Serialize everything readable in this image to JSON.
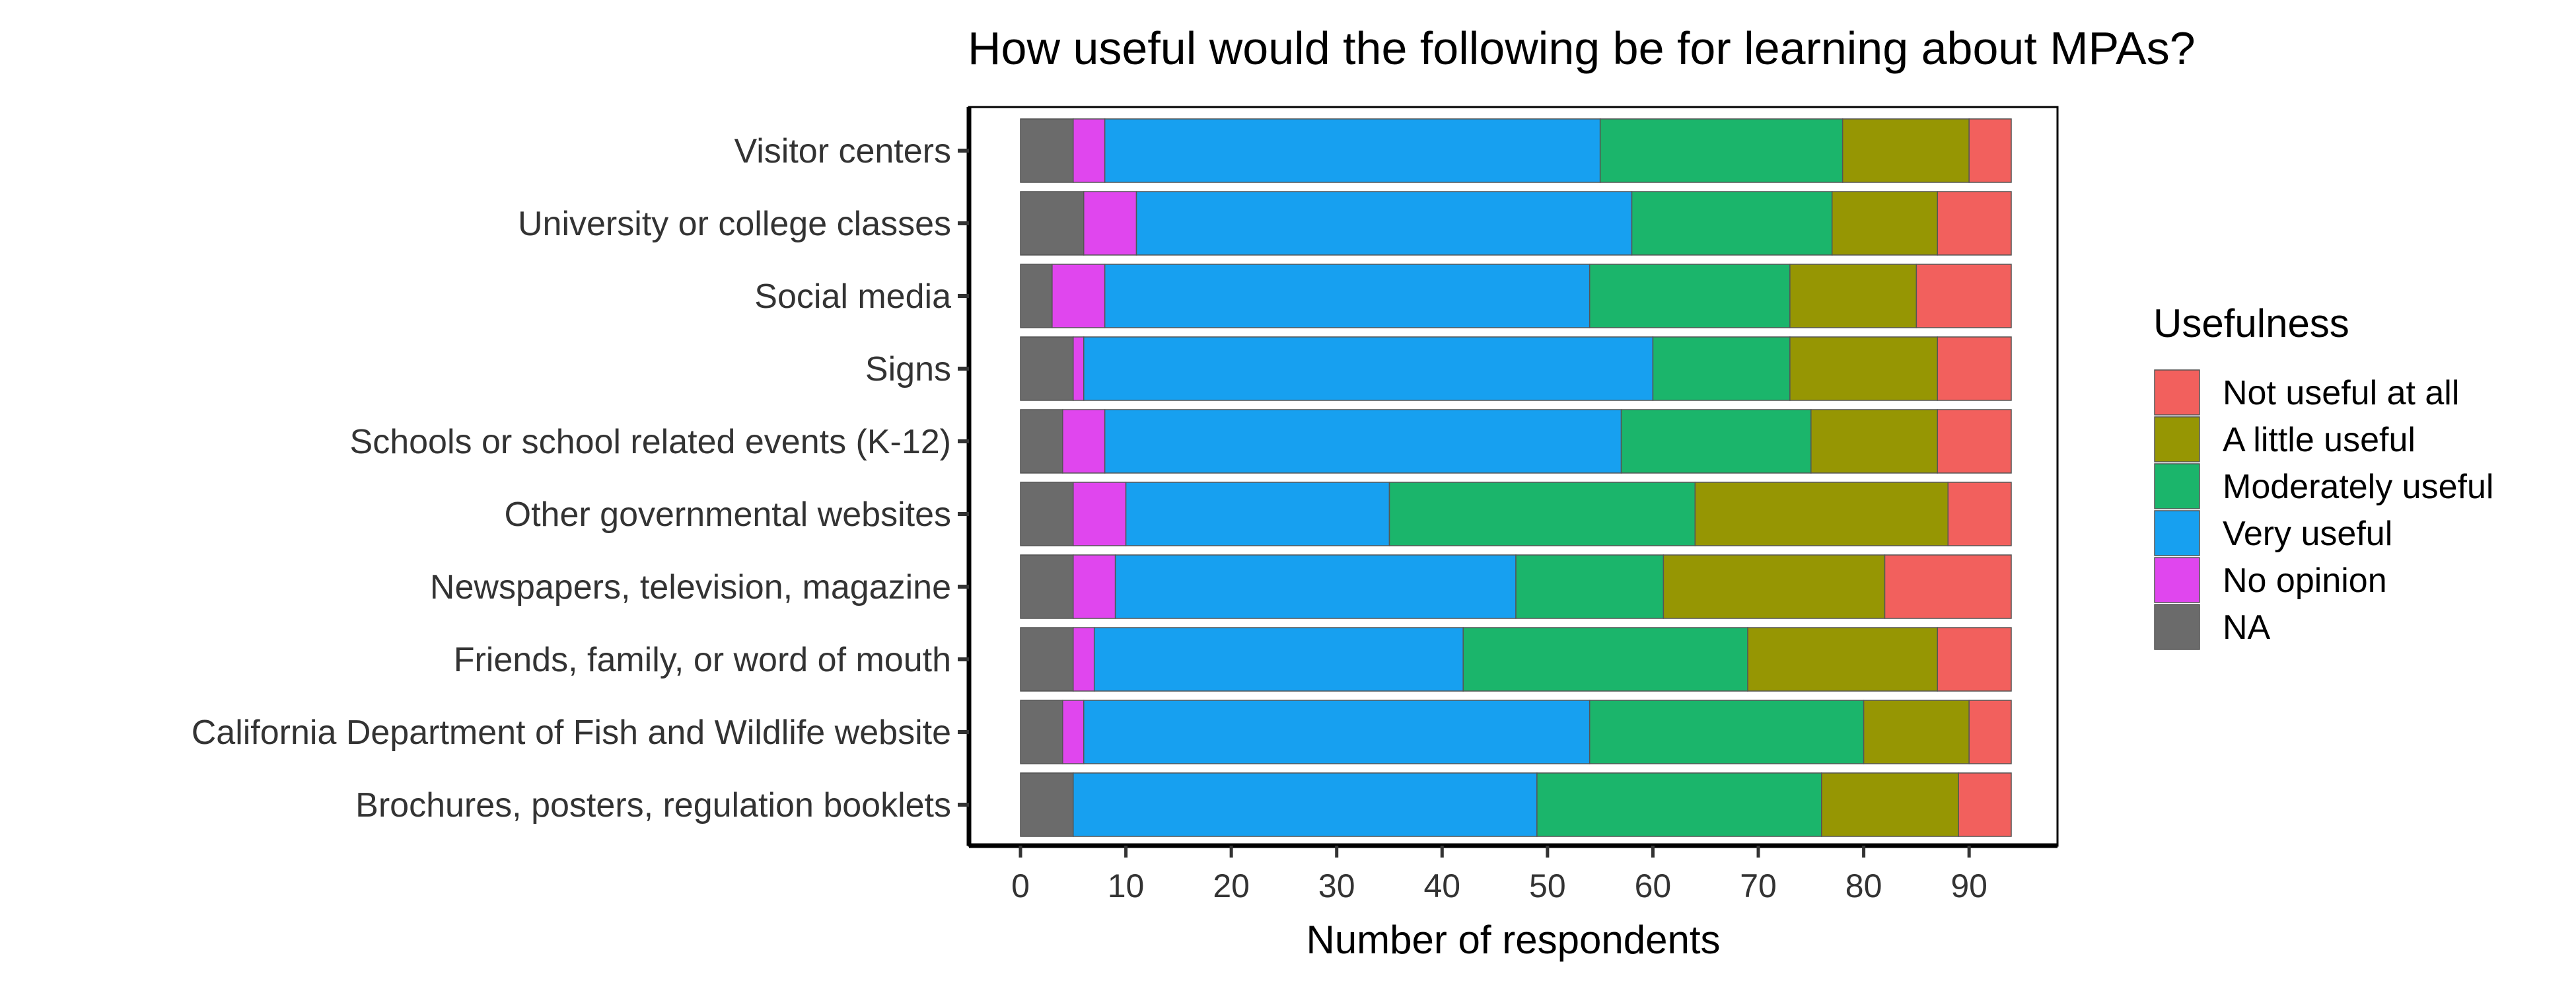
{
  "chart_data": {
    "type": "bar",
    "orientation": "horizontal",
    "stacked": true,
    "title": "How useful would the following be for learning about MPAs?",
    "xlabel": "Number of respondents",
    "ylabel": "",
    "xlim": [
      0,
      94
    ],
    "xticks": [
      0,
      10,
      20,
      30,
      40,
      50,
      60,
      70,
      80,
      90
    ],
    "grid": false,
    "legend_position": "right",
    "categories": [
      "Visitor centers",
      "University or college classes",
      "Social media",
      "Signs",
      "Schools or school related events (K-12)",
      "Other governmental websites",
      "Newspapers, television, magazine",
      "Friends, family, or word of mouth",
      "California Department of Fish and Wildlife website",
      "Brochures, posters, regulation booklets"
    ],
    "stack_order": [
      "NA",
      "No opinion",
      "Very useful",
      "Moderately useful",
      "A little useful",
      "Not useful at all"
    ],
    "series": [
      {
        "name": "NA",
        "color": "#6b6b6b",
        "values": [
          5,
          6,
          3,
          5,
          4,
          5,
          5,
          5,
          4,
          5
        ]
      },
      {
        "name": "No opinion",
        "color": "#e046ee",
        "values": [
          3,
          5,
          5,
          1,
          4,
          5,
          4,
          2,
          2,
          0
        ]
      },
      {
        "name": "Very useful",
        "color": "#17a0f0",
        "values": [
          47,
          47,
          46,
          54,
          49,
          25,
          38,
          35,
          48,
          44
        ]
      },
      {
        "name": "Moderately useful",
        "color": "#1bb56b",
        "values": [
          23,
          19,
          19,
          13,
          18,
          29,
          14,
          27,
          26,
          27
        ]
      },
      {
        "name": "A little useful",
        "color": "#969603",
        "values": [
          12,
          10,
          12,
          14,
          12,
          24,
          21,
          18,
          10,
          13
        ]
      },
      {
        "name": "Not useful at all",
        "color": "#f2605d",
        "values": [
          4,
          7,
          9,
          7,
          7,
          6,
          12,
          7,
          4,
          5
        ]
      }
    ],
    "legend": {
      "title": "Usefulness",
      "entries": [
        "Not useful at all",
        "A little useful",
        "Moderately useful",
        "Very useful",
        "No opinion",
        "NA"
      ]
    }
  }
}
